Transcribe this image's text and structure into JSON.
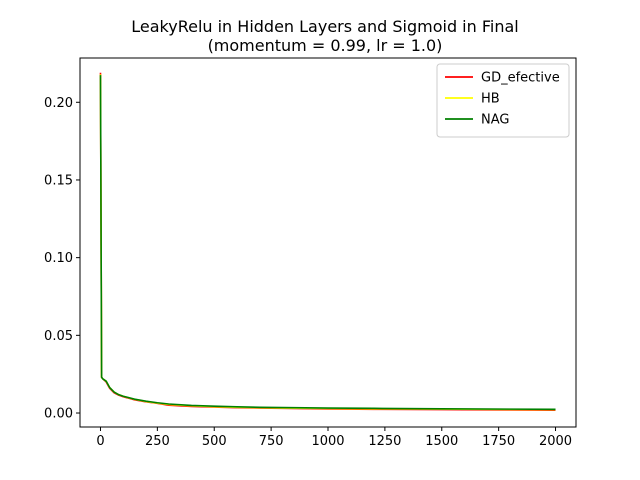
{
  "chart_data": {
    "type": "line",
    "title": "LeakyRelu in Hidden Layers and Sigmoid in Final",
    "subtitle": "(momentum = 0.99, lr = 1.0)",
    "xlabel": "",
    "ylabel": "",
    "xlim": [
      -90,
      2090
    ],
    "ylim": [
      -0.009,
      0.2285
    ],
    "xticks": [
      0,
      250,
      500,
      750,
      1000,
      1250,
      1500,
      1750,
      2000
    ],
    "xtick_labels": [
      "0",
      "250",
      "500",
      "750",
      "1000",
      "1250",
      "1500",
      "1750",
      "2000"
    ],
    "yticks": [
      0.0,
      0.05,
      0.1,
      0.15,
      0.2
    ],
    "ytick_labels": [
      "0.00",
      "0.05",
      "0.10",
      "0.15",
      "0.20"
    ],
    "grid": false,
    "legend_position": "top-right",
    "series": [
      {
        "name": "GD_efective",
        "color": "#ff0000",
        "x": [
          0,
          5,
          10,
          25,
          40,
          60,
          80,
          100,
          150,
          200,
          250,
          300,
          400,
          500,
          600,
          700,
          800,
          1000,
          1200,
          1500,
          1800,
          2000
        ],
        "y": [
          0.219,
          0.023,
          0.022,
          0.02,
          0.016,
          0.013,
          0.0115,
          0.0105,
          0.0085,
          0.0072,
          0.0062,
          0.005,
          0.0042,
          0.0038,
          0.0034,
          0.0032,
          0.003,
          0.0026,
          0.0024,
          0.0022,
          0.002,
          0.0018
        ]
      },
      {
        "name": "HB",
        "color": "#ffff00",
        "x": [
          0,
          5,
          10,
          25,
          40,
          60,
          80,
          100,
          150,
          200,
          250,
          300,
          400,
          500,
          600,
          700,
          800,
          1000,
          1200,
          1500,
          1800,
          2000
        ],
        "y": [
          0.218,
          0.023,
          0.022,
          0.0205,
          0.0165,
          0.0135,
          0.0118,
          0.0108,
          0.0088,
          0.0074,
          0.0064,
          0.0055,
          0.0046,
          0.0041,
          0.0037,
          0.0034,
          0.0032,
          0.0029,
          0.0027,
          0.0025,
          0.0023,
          0.0022
        ]
      },
      {
        "name": "NAG",
        "color": "#008000",
        "x": [
          0,
          5,
          10,
          25,
          40,
          60,
          80,
          100,
          150,
          200,
          250,
          300,
          400,
          500,
          600,
          700,
          800,
          1000,
          1200,
          1500,
          1800,
          2000
        ],
        "y": [
          0.2175,
          0.023,
          0.022,
          0.0205,
          0.0165,
          0.0135,
          0.0118,
          0.0108,
          0.0089,
          0.0076,
          0.0066,
          0.0058,
          0.0049,
          0.0044,
          0.004,
          0.0037,
          0.0035,
          0.0032,
          0.003,
          0.0027,
          0.0025,
          0.0024
        ]
      }
    ]
  }
}
